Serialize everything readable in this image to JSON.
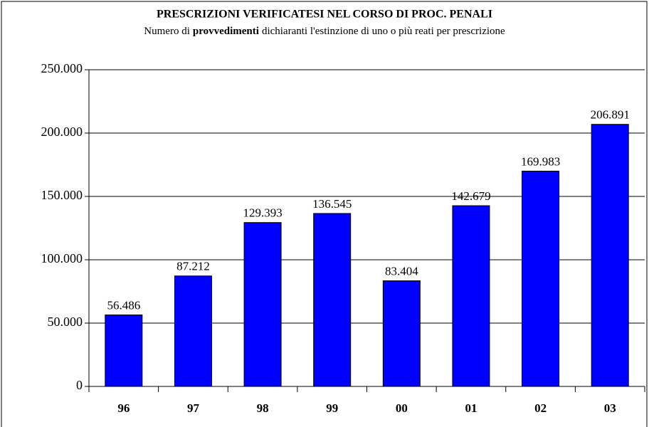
{
  "chart_data": {
    "type": "bar",
    "title": "PRESCRIZIONI VERIFICATESI NEL CORSO DI PROC. PENALI",
    "subtitle": [
      "Numero di",
      "provvedimenti",
      "dichiaranti l'estinzione di uno o più reati per prescrizione"
    ],
    "categories": [
      "96",
      "97",
      "98",
      "99",
      "00",
      "01",
      "02",
      "03"
    ],
    "values": [
      56486,
      87212,
      129393,
      136545,
      83404,
      142679,
      169983,
      206891
    ],
    "value_labels": [
      "56.486",
      "87.212",
      "129.393",
      "136.545",
      "83.404",
      "142.679",
      "169.983",
      "206.891"
    ],
    "color": "#0000ff",
    "ylim": [
      0,
      250000
    ],
    "yticks": [
      0,
      {
        "value": 50000,
        "label": "50.000"
      },
      {
        "value": 100000,
        "label": "100.000"
      },
      {
        "value": 150000,
        "label": "150.000"
      },
      {
        "value": 200000,
        "label": "200.000"
      },
      {
        "value": 250000,
        "label": "250.000"
      }
    ],
    "grid": true
  }
}
